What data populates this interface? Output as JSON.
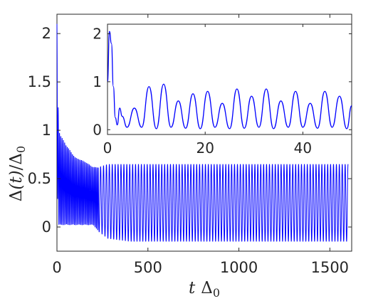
{
  "chart_data": [
    {
      "type": "line",
      "panel": "main",
      "xlabel": "t Δ0",
      "ylabel": "Δ(t)/Δ0",
      "xlim": [
        0,
        1620
      ],
      "ylim": [
        -0.25,
        2.2
      ],
      "xticks": [
        0,
        500,
        1000,
        1500
      ],
      "yticks": [
        0,
        0.5,
        1,
        1.5,
        2
      ],
      "xtick_labels": [
        "0",
        "500",
        "1000",
        "1500"
      ],
      "ytick_labels": [
        "0",
        "0.5",
        "1",
        "1.5",
        "2"
      ],
      "grid": false,
      "color": "#0000ff",
      "series": [
        {
          "x": [
            0,
            5,
            10,
            20,
            50,
            100,
            150,
            200,
            230,
            280,
            400,
            600,
            800,
            1000,
            1200,
            1400,
            1600
          ],
          "y_upper_envelope": [
            2.1,
            1.4,
            1.0,
            0.95,
            0.85,
            0.72,
            0.68,
            0.62,
            0.62,
            0.65,
            0.65,
            0.65,
            0.65,
            0.65,
            0.65,
            0.65,
            0.65
          ],
          "y_lower_envelope": [
            1.0,
            0.05,
            0.02,
            0.02,
            0.02,
            0.02,
            0.02,
            0.02,
            -0.05,
            -0.12,
            -0.15,
            -0.15,
            -0.15,
            -0.15,
            -0.15,
            -0.15,
            -0.15
          ],
          "mean_period": 16
        }
      ]
    },
    {
      "type": "line",
      "panel": "inset",
      "xlim": [
        0,
        50
      ],
      "ylim": [
        -0.1,
        2.2
      ],
      "xticks": [
        0,
        20,
        40
      ],
      "yticks": [
        0,
        1,
        2
      ],
      "xtick_labels": [
        "0",
        "20",
        "40"
      ],
      "ytick_labels": [
        "0",
        "1",
        "2"
      ],
      "grid": false,
      "color": "#0000ff",
      "series": [
        {
          "x": [
            0,
            0.4,
            0.8,
            1.2,
            1.6,
            2.0,
            2.5,
            3.0,
            4.0,
            5.5,
            7.0,
            8.5,
            10.0,
            11.5,
            13.0,
            14.5,
            16.0,
            17.5,
            19.0,
            20.5,
            22.0,
            23.5,
            25.0,
            26.5,
            28.0,
            29.5,
            31.0,
            32.5,
            34.0,
            35.5,
            37.0,
            38.5,
            40.0,
            41.5,
            43.0,
            44.5,
            46.0,
            47.5,
            49.0,
            50.0
          ],
          "y": [
            1.0,
            2.05,
            1.8,
            0.9,
            0.25,
            0.1,
            0.45,
            0.28,
            0.05,
            0.45,
            0.05,
            0.9,
            0.02,
            0.95,
            0.05,
            0.6,
            0.03,
            0.75,
            0.02,
            0.8,
            0.05,
            0.55,
            0.02,
            0.85,
            0.03,
            0.7,
            0.05,
            0.85,
            0.02,
            0.6,
            0.05,
            0.8,
            0.05,
            0.55,
            0.03,
            0.8,
            0.05,
            0.7,
            0.02,
            0.5
          ]
        }
      ]
    }
  ]
}
